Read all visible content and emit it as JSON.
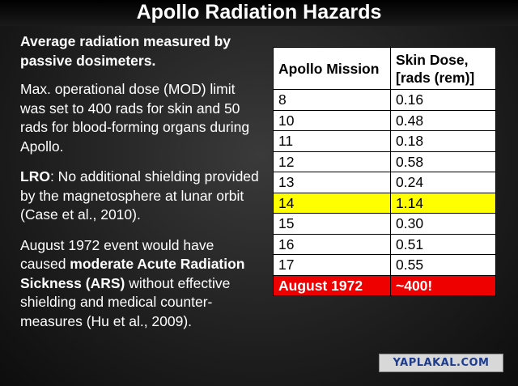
{
  "title": "Apollo Radiation Hazards",
  "left_text": {
    "lead": "Average radiation measured by passive dosimeters.",
    "mod": "Max. operational dose (MOD) limit was set to 400 rads for skin and 50 rads for blood-forming organs during Apollo.",
    "lro_label": "LRO",
    "lro_text": ": No additional shielding provided by the magnetosphere at lunar orbit (Case et al., 2010).",
    "aug_pre": "August 1972 event would have caused ",
    "aug_bold": "moderate Acute Radiation Sickness (ARS)",
    "aug_post": " without effective shielding and medical counter-measures (Hu et al., 2009)."
  },
  "table": {
    "headers": [
      "Apollo Mission",
      "Skin Dose, [rads (rem)]"
    ],
    "rows": [
      [
        "8",
        "0.16"
      ],
      [
        "10",
        "0.48"
      ],
      [
        "11",
        "0.18"
      ],
      [
        "12",
        "0.58"
      ],
      [
        "13",
        "0.24"
      ],
      [
        "14",
        "1.14"
      ],
      [
        "15",
        "0.30"
      ],
      [
        "16",
        "0.51"
      ],
      [
        "17",
        "0.55"
      ],
      [
        "August 1972",
        "~400!"
      ]
    ],
    "highlight_color": "#ffff00",
    "alert_color": "#ee0000"
  },
  "watermark": "YAPLAKAL.COM"
}
